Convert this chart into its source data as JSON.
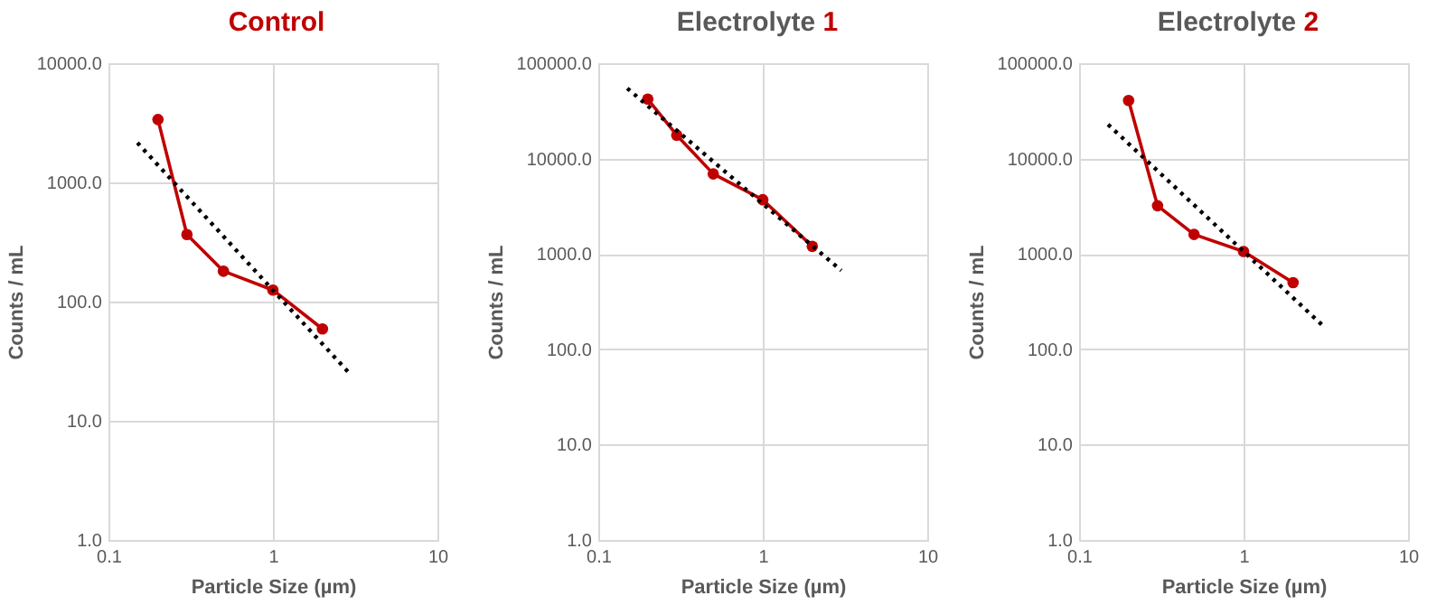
{
  "chart_data": [
    {
      "type": "line",
      "title": "Control",
      "xlabel": "Particle Size (µm)",
      "ylabel": "Counts / mL",
      "log": "xy",
      "grid": true,
      "xlim": [
        0.1,
        10
      ],
      "xticks": [
        0.1,
        1,
        10
      ],
      "ylim": [
        1,
        10000
      ],
      "yticks": [
        {
          "value": 1,
          "label": "1.0"
        },
        {
          "value": 10,
          "label": "10.0"
        },
        {
          "value": 100,
          "label": "100.0"
        },
        {
          "value": 1000,
          "label": "1000.0"
        },
        {
          "value": 10000,
          "label": "10000.0"
        }
      ],
      "series": [
        {
          "color": "#c00000",
          "marker": "circle",
          "x": [
            0.2,
            0.3,
            0.5,
            1,
            2
          ],
          "values": [
            3370,
            365,
            180,
            125,
            59
          ]
        },
        {
          "type": "line",
          "color": "#000000",
          "marker": "none",
          "line_style": "dotted",
          "x": [
            0.15,
            3
          ],
          "values": [
            2150,
            24
          ]
        }
      ]
    },
    {
      "type": "line",
      "title": "Electrolyte 1",
      "xlabel": "Particle Size (µm)",
      "ylabel": "Counts / mL",
      "log": "xy",
      "grid": true,
      "xlim": [
        0.1,
        10
      ],
      "xticks": [
        0.1,
        1,
        10
      ],
      "ylim": [
        1,
        100000
      ],
      "yticks": [
        {
          "value": 1,
          "label": "1.0"
        },
        {
          "value": 10,
          "label": "10.0"
        },
        {
          "value": 100,
          "label": "100.0"
        },
        {
          "value": 1000,
          "label": "1000.0"
        },
        {
          "value": 10000,
          "label": "10000.0"
        },
        {
          "value": 100000,
          "label": "100000.0"
        }
      ],
      "series": [
        {
          "color": "#c00000",
          "marker": "circle",
          "x": [
            0.2,
            0.3,
            0.5,
            1,
            2
          ],
          "values": [
            42000,
            17600,
            6900,
            3700,
            1200
          ]
        },
        {
          "type": "line",
          "color": "#000000",
          "marker": "none",
          "line_style": "dotted",
          "x": [
            0.15,
            3
          ],
          "values": [
            54500,
            670
          ]
        }
      ]
    },
    {
      "type": "line",
      "title": "Electrolyte 2",
      "xlabel": "Particle Size (µm)",
      "ylabel": "Counts / mL",
      "log": "xy",
      "grid": true,
      "xlim": [
        0.1,
        10
      ],
      "xticks": [
        0.1,
        1,
        10
      ],
      "ylim": [
        1,
        100000
      ],
      "yticks": [
        {
          "value": 1,
          "label": "1.0"
        },
        {
          "value": 10,
          "label": "10.0"
        },
        {
          "value": 100,
          "label": "100.0"
        },
        {
          "value": 1000,
          "label": "1000.0"
        },
        {
          "value": 10000,
          "label": "10000.0"
        },
        {
          "value": 100000,
          "label": "100000.0"
        }
      ],
      "series": [
        {
          "color": "#c00000",
          "marker": "circle",
          "x": [
            0.2,
            0.3,
            0.5,
            1,
            2
          ],
          "values": [
            40700,
            3200,
            1600,
            1060,
            500
          ]
        },
        {
          "type": "line",
          "color": "#000000",
          "marker": "none",
          "line_style": "dotted",
          "x": [
            0.15,
            3
          ],
          "values": [
            22800,
            180
          ]
        }
      ]
    }
  ]
}
